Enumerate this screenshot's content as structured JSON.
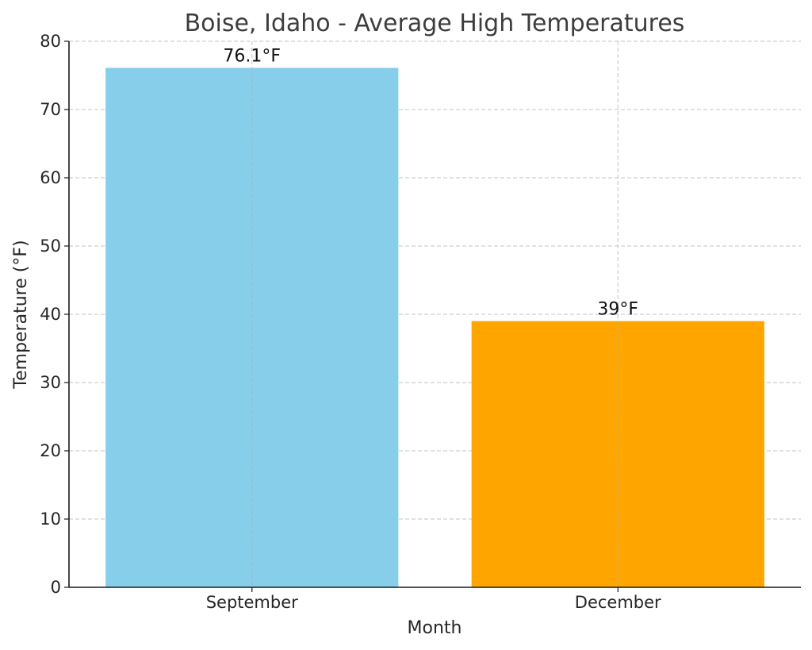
{
  "chart_data": {
    "type": "bar",
    "title": "Boise, Idaho - Average High Temperatures",
    "xlabel": "Month",
    "ylabel": "Temperature (°F)",
    "categories": [
      "September",
      "December"
    ],
    "values": [
      76.1,
      39
    ],
    "value_labels": [
      "76.1°F",
      "39°F"
    ],
    "colors": [
      "#87ceeb",
      "#ffa500"
    ],
    "ylim": [
      0,
      80
    ],
    "yticks": [
      0,
      10,
      20,
      30,
      40,
      50,
      60,
      70,
      80
    ],
    "grid": true
  }
}
